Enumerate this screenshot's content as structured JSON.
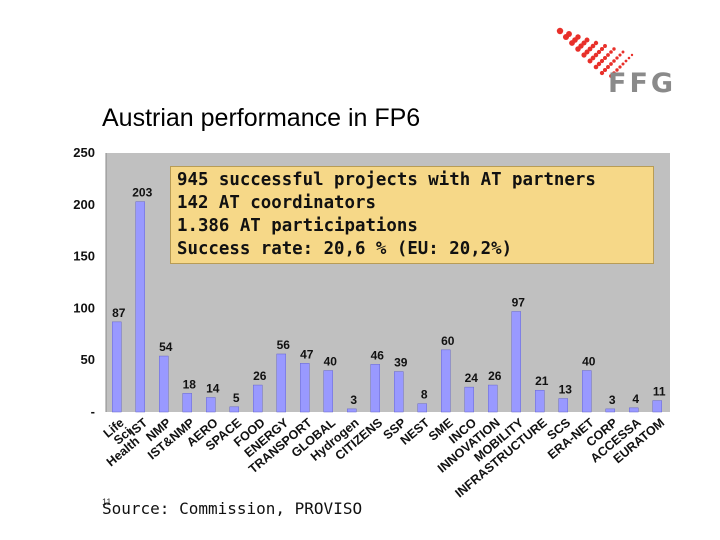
{
  "brand": {
    "name": "FFG",
    "accent": "#e8302a"
  },
  "title": "Austrian performance in FP6",
  "info_box": {
    "lines": [
      "945 successful projects with AT partners",
      "142 AT coordinators",
      "1.386 AT participations",
      "Success rate: 20,6 % (EU: 20,2%)"
    ]
  },
  "source": "Source: Commission, PROVISO",
  "page_number": "11",
  "chart_data": {
    "type": "bar",
    "title": "",
    "xlabel": "",
    "ylabel": "",
    "ylim": [
      0,
      250
    ],
    "ytick_labels": [
      "-",
      "50",
      "100",
      "150",
      "200",
      "250"
    ],
    "ytick_values": [
      0,
      50,
      100,
      150,
      200,
      250
    ],
    "grid": false,
    "bar_color": "#9999ff",
    "plot_bg": "#c0c0c0",
    "categories": [
      "Life Sci Health",
      "IST",
      "NMP",
      "IST&NMP",
      "AERO",
      "SPACE",
      "FOOD",
      "ENERGY",
      "TRANSPORT",
      "GLOBAL",
      "Hydrogen",
      "CITIZENS",
      "SSP",
      "NEST",
      "SME",
      "INCO",
      "INNOVATION",
      "MOBILITY",
      "INFRASTRUCTURE",
      "SCS",
      "ERA-NET",
      "CORP",
      "ACCESSA",
      "EURATOM"
    ],
    "values": [
      87,
      203,
      54,
      18,
      14,
      5,
      26,
      56,
      47,
      40,
      3,
      46,
      39,
      8,
      60,
      24,
      26,
      97,
      21,
      13,
      40,
      3,
      4,
      11
    ],
    "x_label_lines": [
      [
        "Life",
        "Sci",
        "Health"
      ],
      [
        "IST"
      ],
      [
        "NMP"
      ],
      [
        "IST&NMP"
      ],
      [
        "AERO"
      ],
      [
        "SPACE"
      ],
      [
        "FOOD"
      ],
      [
        "ENERGY"
      ],
      [
        "TRANSPORT"
      ],
      [
        "GLOBAL"
      ],
      [
        "Hydrogen"
      ],
      [
        "CITIZENS"
      ],
      [
        "SSP"
      ],
      [
        "NEST"
      ],
      [
        "SME"
      ],
      [
        "INCO"
      ],
      [
        "INNOVATION"
      ],
      [
        "MOBILITY"
      ],
      [
        "INFRASTRUCTURE"
      ],
      [
        "SCS"
      ],
      [
        "ERA-NET"
      ],
      [
        "CORP"
      ],
      [
        "ACCESSA"
      ],
      [
        "EURATOM"
      ]
    ]
  }
}
